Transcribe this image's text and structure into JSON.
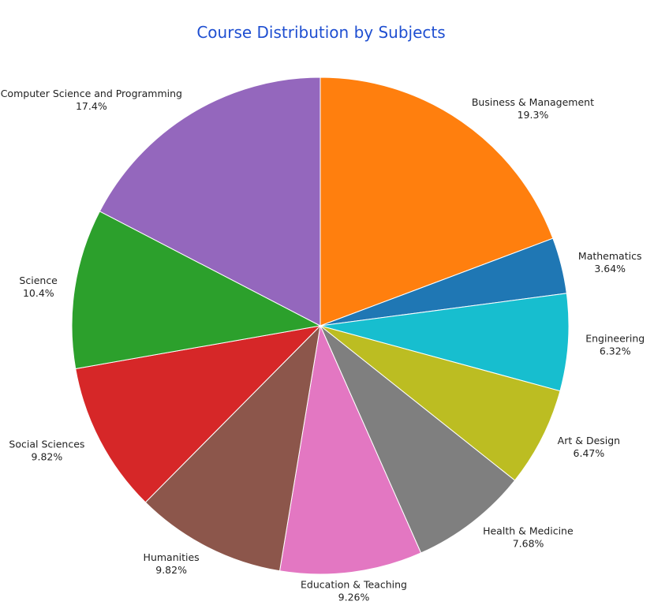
{
  "chart_data": {
    "type": "pie",
    "title": "Course Distribution by Subjects",
    "start_angle_deg": 90,
    "direction": "clockwise",
    "slices": [
      {
        "label": "Business & Management",
        "percent": 19.3,
        "percent_text": "19.3%",
        "color": "#ff7f0e"
      },
      {
        "label": "Mathematics",
        "percent": 3.64,
        "percent_text": "3.64%",
        "color": "#1f77b4"
      },
      {
        "label": "Engineering",
        "percent": 6.32,
        "percent_text": "6.32%",
        "color": "#17becf"
      },
      {
        "label": "Art & Design",
        "percent": 6.47,
        "percent_text": "6.47%",
        "color": "#bcbd22"
      },
      {
        "label": "Health & Medicine",
        "percent": 7.68,
        "percent_text": "7.68%",
        "color": "#7f7f7f"
      },
      {
        "label": "Education & Teaching",
        "percent": 9.26,
        "percent_text": "9.26%",
        "color": "#e377c2"
      },
      {
        "label": "Humanities",
        "percent": 9.82,
        "percent_text": "9.82%",
        "color": "#8c564b"
      },
      {
        "label": "Social Sciences",
        "percent": 9.82,
        "percent_text": "9.82%",
        "color": "#d62728"
      },
      {
        "label": "Science",
        "percent": 10.4,
        "percent_text": "10.4%",
        "color": "#2ca02c"
      },
      {
        "label": "Computer Science and Programming",
        "percent": 17.4,
        "percent_text": "17.4%",
        "color": "#9467bd"
      }
    ]
  }
}
